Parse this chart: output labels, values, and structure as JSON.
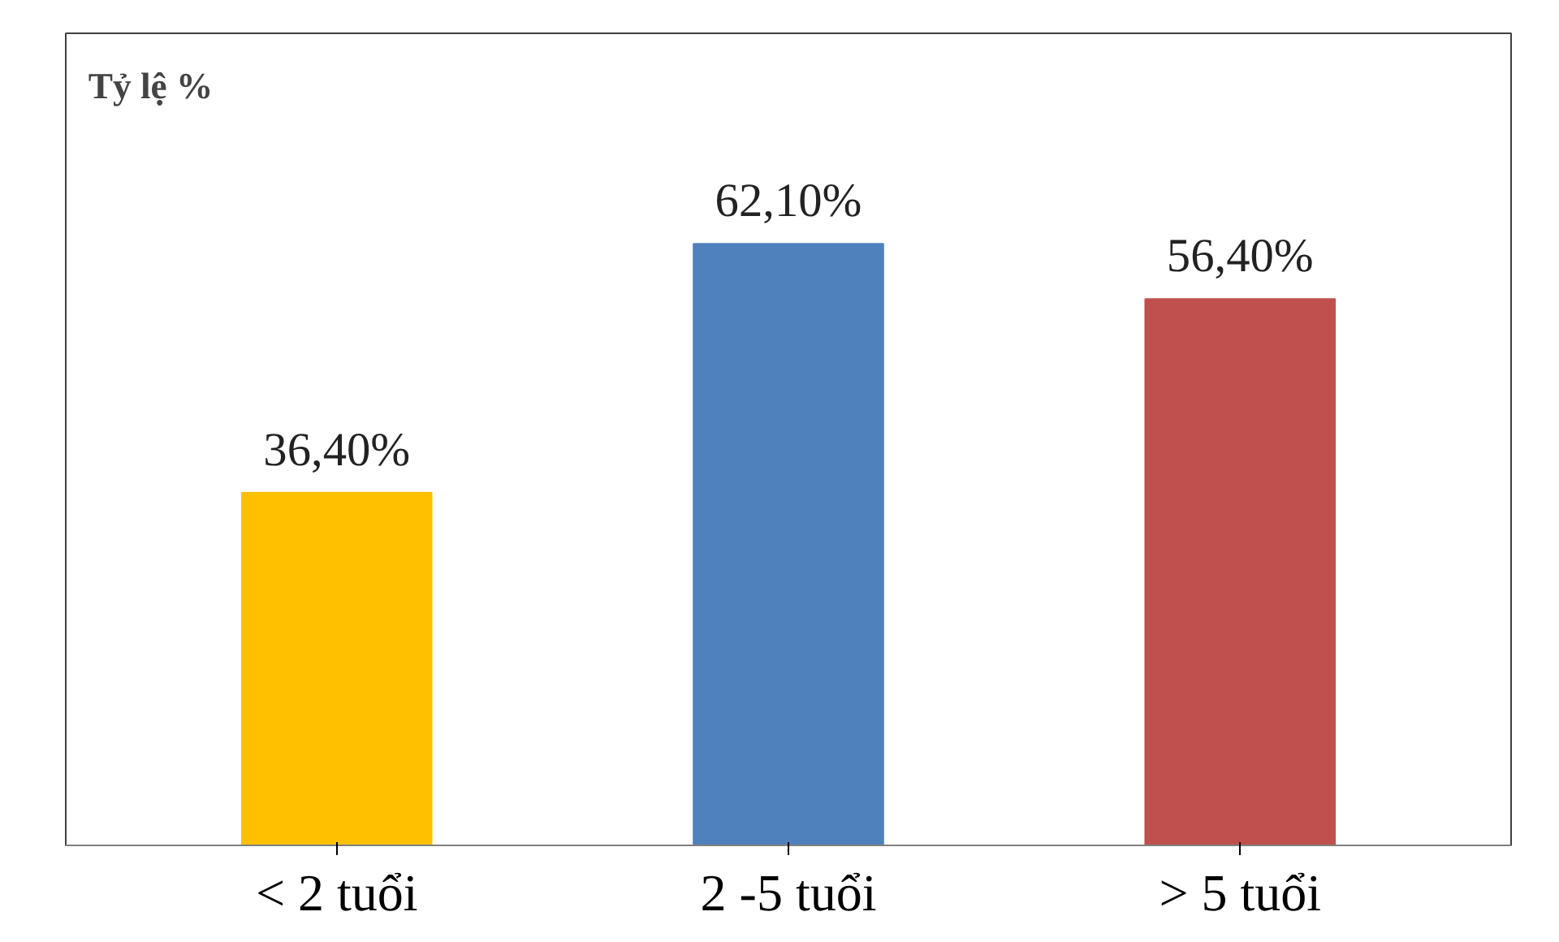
{
  "chart_data": {
    "type": "bar",
    "ylabel": "Tỷ lệ %",
    "categories": [
      "< 2 tuổi",
      "2 -5 tuổi",
      "> 5 tuổi"
    ],
    "values": [
      36.4,
      62.1,
      56.4
    ],
    "colors": [
      "#ffc000",
      "#4f81bd",
      "#c0504d"
    ],
    "value_labels": [
      "36,40%",
      "62,10%",
      "56,40%"
    ],
    "grid": false
  }
}
